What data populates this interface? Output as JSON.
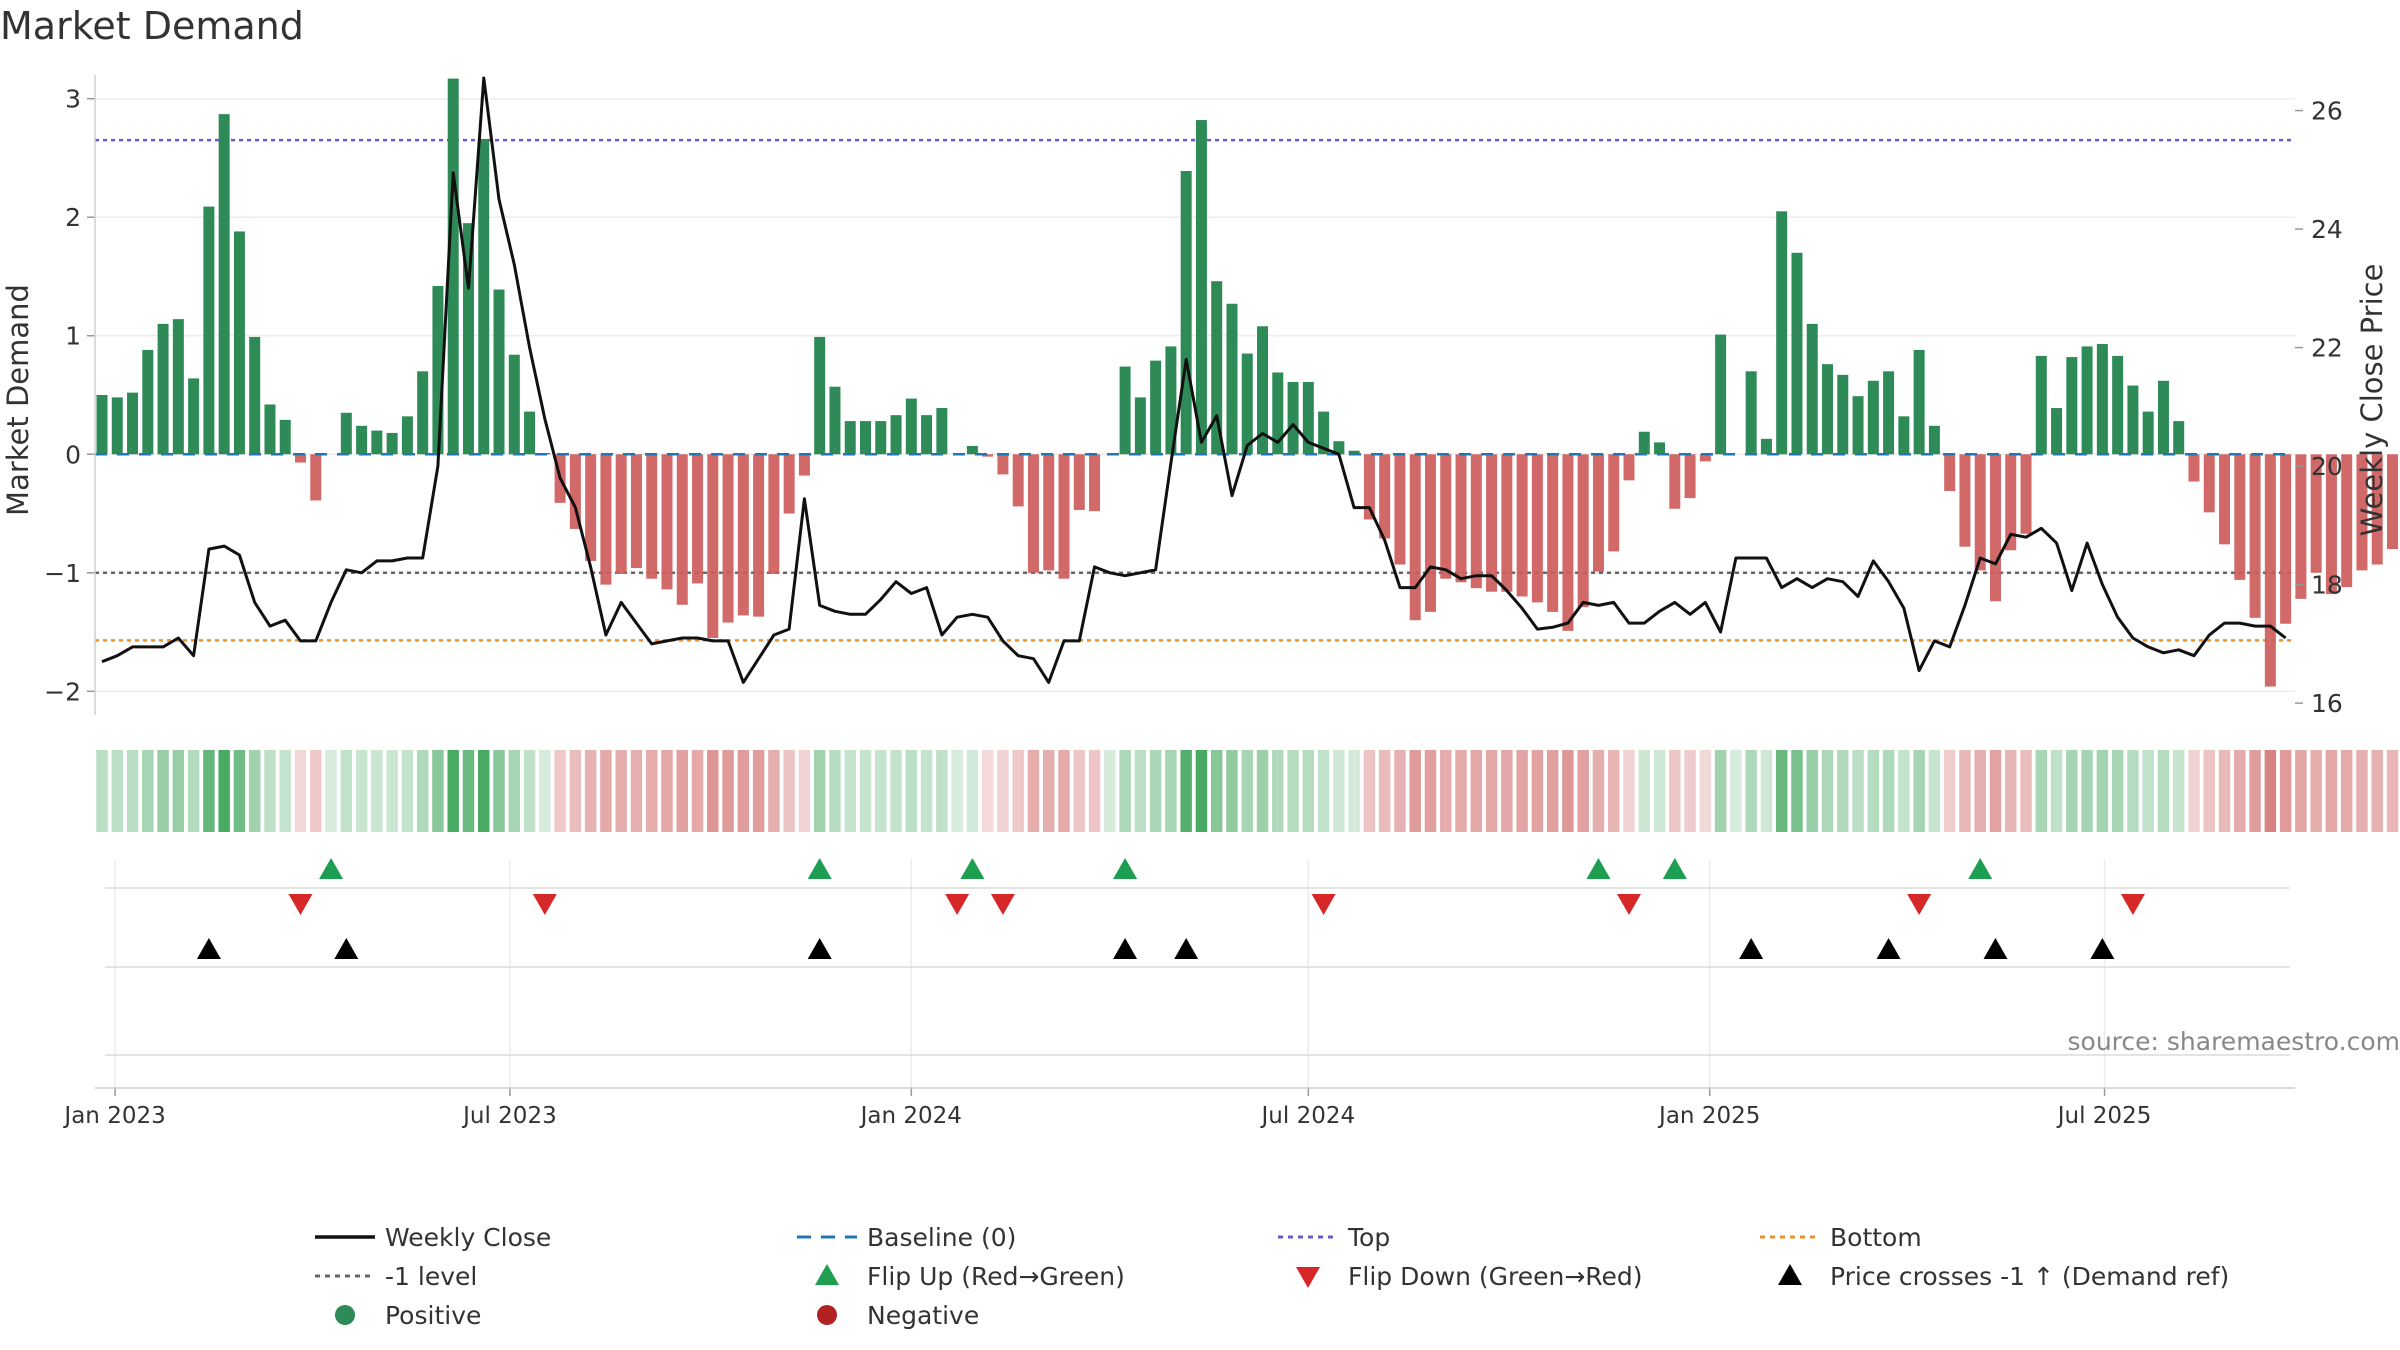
{
  "title": "Market Demand",
  "chart_data": {
    "type": "bar+line",
    "title": "Market Demand",
    "ylabel_left": "Market Demand",
    "ylabel_right": "Weekly Close Price",
    "ylim_left": [
      -2.2,
      3.2
    ],
    "ylim_right": [
      15.8,
      26.6
    ],
    "yticks_left": [
      3,
      2,
      1,
      0,
      -1,
      -2
    ],
    "ytick_labels_left": [
      "3",
      "2",
      "1",
      "0",
      "−1",
      "−2"
    ],
    "yticks_right": [
      26,
      24,
      22,
      20,
      18,
      16
    ],
    "ytick_labels_right": [
      "26",
      "24",
      "22",
      "20",
      "18",
      "16"
    ],
    "x_start": "2022-12-26",
    "x_step_days": 7,
    "xticks": [
      {
        "label": "Jan 2023",
        "date": "2023-01-01"
      },
      {
        "label": "Jul 2023",
        "date": "2023-07-01"
      },
      {
        "label": "Jan 2024",
        "date": "2024-01-01"
      },
      {
        "label": "Jul 2024",
        "date": "2024-07-01"
      },
      {
        "label": "Jan 2025",
        "date": "2025-01-01"
      },
      {
        "label": "Jul 2025",
        "date": "2025-07-01"
      }
    ],
    "top_level": 2.65,
    "bottom_level": -1.57,
    "ref_level": -1,
    "baseline": 0,
    "demand": [
      0.5,
      0.48,
      0.52,
      0.88,
      1.1,
      1.14,
      0.64,
      2.09,
      2.87,
      1.88,
      0.99,
      0.42,
      0.29,
      -0.07,
      -0.39,
      0.0,
      0.35,
      0.24,
      0.2,
      0.18,
      0.32,
      0.7,
      1.42,
      3.17,
      1.95,
      2.66,
      1.39,
      0.84,
      0.36,
      0.01,
      -0.41,
      -0.63,
      -0.9,
      -1.1,
      -1.01,
      -0.96,
      -1.05,
      -1.14,
      -1.27,
      -1.09,
      -1.55,
      -1.42,
      -1.36,
      -1.37,
      -1.01,
      -0.5,
      -0.18,
      0.99,
      0.57,
      0.28,
      0.28,
      0.28,
      0.33,
      0.47,
      0.33,
      0.39,
      0.0,
      0.07,
      -0.02,
      -0.17,
      -0.44,
      -1.0,
      -0.98,
      -1.05,
      -0.47,
      -0.48,
      0.0,
      0.74,
      0.48,
      0.79,
      0.91,
      2.39,
      2.82,
      1.46,
      1.27,
      0.85,
      1.08,
      0.69,
      0.61,
      0.61,
      0.36,
      0.11,
      0.03,
      -0.55,
      -0.71,
      -0.93,
      -1.4,
      -1.33,
      -1.05,
      -1.08,
      -1.13,
      -1.16,
      -1.16,
      -1.2,
      -1.25,
      -1.33,
      -1.49,
      -1.29,
      -0.99,
      -0.82,
      -0.22,
      0.19,
      0.1,
      -0.46,
      -0.37,
      -0.06,
      1.01,
      0.0,
      0.7,
      0.13,
      2.05,
      1.7,
      1.1,
      0.76,
      0.67,
      0.49,
      0.62,
      0.7,
      0.32,
      0.88,
      0.24,
      -0.31,
      -0.78,
      -0.98,
      -1.24,
      -0.81,
      -0.67,
      0.83,
      0.39,
      0.82,
      0.91,
      0.93,
      0.83,
      0.58,
      0.36,
      0.62,
      0.28,
      -0.23,
      -0.49,
      -0.76,
      -1.06,
      -1.38,
      -1.96,
      -1.43,
      -1.22,
      -1.0,
      -1.18,
      -1.12,
      -0.98,
      -0.93,
      -0.8
    ],
    "close": [
      16.7,
      16.8,
      16.95,
      16.95,
      16.95,
      17.1,
      16.8,
      18.6,
      18.65,
      18.5,
      17.7,
      17.3,
      17.4,
      17.05,
      17.05,
      17.7,
      18.25,
      18.2,
      18.4,
      18.4,
      18.45,
      18.45,
      20,
      24.95,
      23,
      26.55,
      24.5,
      23.4,
      22,
      20.8,
      19.8,
      19.3,
      18.3,
      17.15,
      17.7,
      17.35,
      17,
      17.05,
      17.1,
      17.1,
      17.05,
      17.05,
      16.35,
      16.75,
      17.15,
      17.25,
      19.45,
      17.65,
      17.55,
      17.5,
      17.5,
      17.75,
      18.05,
      17.85,
      17.95,
      17.15,
      17.45,
      17.5,
      17.45,
      17.05,
      16.8,
      16.75,
      16.35,
      17.05,
      17.05,
      18.3,
      18.2,
      18.15,
      18.2,
      18.25,
      20.05,
      21.8,
      20.4,
      20.85,
      19.5,
      20.35,
      20.55,
      20.4,
      20.7,
      20.4,
      20.3,
      20.2,
      19.3,
      19.3,
      18.75,
      17.95,
      17.95,
      18.3,
      18.25,
      18.1,
      18.15,
      18.15,
      17.9,
      17.6,
      17.25,
      17.28,
      17.35,
      17.7,
      17.65,
      17.7,
      17.35,
      17.35,
      17.55,
      17.7,
      17.5,
      17.7,
      17.2,
      18.45,
      18.45,
      18.45,
      17.95,
      18.1,
      17.95,
      18.1,
      18.05,
      17.8,
      18.4,
      18.05,
      17.6,
      16.55,
      17.05,
      16.95,
      17.65,
      18.45,
      18.35,
      18.85,
      18.8,
      18.95,
      18.7,
      17.9,
      18.7,
      18,
      17.45,
      17.1,
      16.95,
      16.85,
      16.9,
      16.8,
      17.15,
      17.35,
      17.35,
      17.3,
      17.3,
      17.1
    ],
    "flip_up_idx": [
      15,
      47,
      57,
      67,
      98,
      103,
      123
    ],
    "flip_down_idx": [
      13,
      29,
      56,
      59,
      80,
      100,
      119,
      133
    ],
    "price_cross_idx": [
      7,
      16,
      47,
      67,
      71,
      108,
      117,
      124,
      131
    ],
    "colors": {
      "positive": "#2e8b57",
      "negative": "#cd5c5c",
      "close_line": "#111111",
      "baseline": "#1f77b4",
      "top": "#6a5acd",
      "ref": "#666666",
      "bottom": "#e8912d",
      "flip_up": "#1e9e50",
      "flip_down": "#d62828",
      "cross": "#000000"
    }
  },
  "legend": [
    {
      "label": "Weekly Close",
      "symbol": "solid-line",
      "color": "#111111"
    },
    {
      "label": "Baseline (0)",
      "symbol": "dashed-line",
      "color": "#1f77b4"
    },
    {
      "label": "Top",
      "symbol": "dotted-line",
      "color": "#6a5acd"
    },
    {
      "label": "Bottom",
      "symbol": "dotted-line",
      "color": "#e8912d"
    },
    {
      "label": "-1 level",
      "symbol": "dotted-line",
      "color": "#666666"
    },
    {
      "label": "Flip Up (Red→Green)",
      "symbol": "triangle-up",
      "color": "#1e9e50"
    },
    {
      "label": "Flip Down (Green→Red)",
      "symbol": "triangle-down",
      "color": "#d62828"
    },
    {
      "label": "Price crosses -1 ↑ (Demand ref)",
      "symbol": "triangle-up",
      "color": "#000000"
    },
    {
      "label": "Positive",
      "symbol": "circle",
      "color": "#2e8b57"
    },
    {
      "label": "Negative",
      "symbol": "circle",
      "color": "#b22222"
    }
  ],
  "source": "source: sharemaestro.com"
}
